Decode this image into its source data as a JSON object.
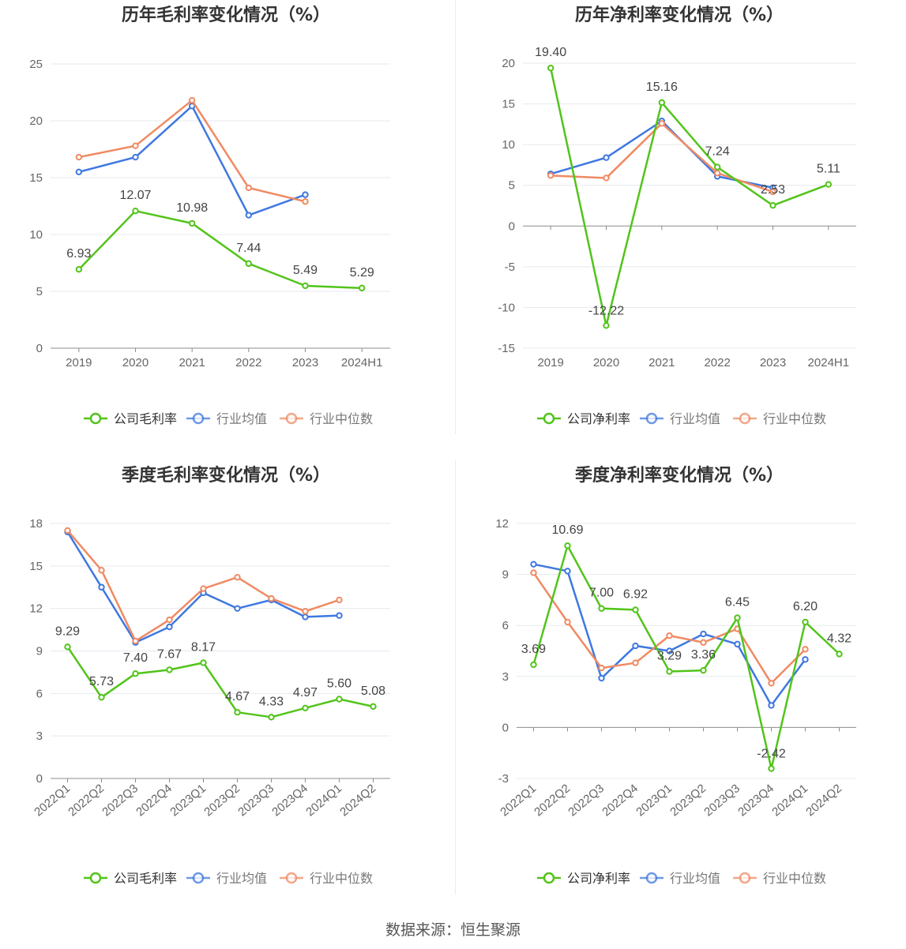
{
  "source_text": "数据来源：恒生聚源",
  "colors": {
    "company": "#52c41a",
    "avg": "#3f78e0",
    "median": "#f08a62",
    "grid": "#e6e9ef",
    "axis": "#8c8c8c",
    "label": "#666666",
    "title": "#333333"
  },
  "chart_data": [
    {
      "type": "line",
      "title": "历年毛利率变化情况（%）",
      "categories": [
        "2019",
        "2020",
        "2021",
        "2022",
        "2023",
        "2024H1"
      ],
      "ylim": [
        0,
        25
      ],
      "yticks": [
        0,
        5,
        10,
        15,
        20,
        25
      ],
      "rotate_x": false,
      "series": [
        {
          "name": "公司毛利率",
          "key": "company",
          "values": [
            6.93,
            12.07,
            10.98,
            7.44,
            5.49,
            5.29
          ],
          "labels": [
            "6.93",
            "12.07",
            "10.98",
            "7.44",
            "5.49",
            "5.29"
          ]
        },
        {
          "name": "行业均值",
          "key": "avg",
          "values": [
            15.5,
            16.8,
            21.3,
            11.7,
            13.5,
            null
          ]
        },
        {
          "name": "行业中位数",
          "key": "median",
          "values": [
            16.8,
            17.8,
            21.8,
            14.1,
            12.9,
            null
          ]
        }
      ]
    },
    {
      "type": "line",
      "title": "历年净利率变化情况（%）",
      "categories": [
        "2019",
        "2020",
        "2021",
        "2022",
        "2023",
        "2024H1"
      ],
      "ylim": [
        -15,
        20
      ],
      "yticks": [
        -15,
        -10,
        -5,
        0,
        5,
        10,
        15,
        20
      ],
      "rotate_x": false,
      "series": [
        {
          "name": "公司净利率",
          "key": "company",
          "values": [
            19.4,
            -12.22,
            15.16,
            7.24,
            2.53,
            5.11
          ],
          "labels": [
            "19.40",
            "-12.22",
            "15.16",
            "7.24",
            "2.53",
            "5.11"
          ]
        },
        {
          "name": "行业均值",
          "key": "avg",
          "values": [
            6.4,
            8.4,
            12.9,
            6.1,
            4.7,
            null
          ]
        },
        {
          "name": "行业中位数",
          "key": "median",
          "values": [
            6.2,
            5.9,
            12.6,
            6.5,
            4.2,
            null
          ]
        }
      ]
    },
    {
      "type": "line",
      "title": "季度毛利率变化情况（%）",
      "categories": [
        "2022Q1",
        "2022Q2",
        "2022Q3",
        "2022Q4",
        "2023Q1",
        "2023Q2",
        "2023Q3",
        "2023Q4",
        "2024Q1",
        "2024Q2"
      ],
      "ylim": [
        0,
        18
      ],
      "yticks": [
        0,
        3,
        6,
        9,
        12,
        15,
        18
      ],
      "rotate_x": true,
      "series": [
        {
          "name": "公司毛利率",
          "key": "company",
          "values": [
            9.29,
            5.73,
            7.4,
            7.67,
            8.17,
            4.67,
            4.33,
            4.97,
            5.6,
            5.08
          ],
          "labels": [
            "9.29",
            "5.73",
            "7.40",
            "7.67",
            "8.17",
            "4.67",
            "4.33",
            "4.97",
            "5.60",
            "5.08"
          ]
        },
        {
          "name": "行业均值",
          "key": "avg",
          "values": [
            17.4,
            13.5,
            9.6,
            10.7,
            13.1,
            12.0,
            12.6,
            11.4,
            11.5,
            null
          ]
        },
        {
          "name": "行业中位数",
          "key": "median",
          "values": [
            17.5,
            14.7,
            9.7,
            11.2,
            13.4,
            14.2,
            12.7,
            11.8,
            12.6,
            null
          ]
        }
      ]
    },
    {
      "type": "line",
      "title": "季度净利率变化情况（%）",
      "categories": [
        "2022Q1",
        "2022Q2",
        "2022Q3",
        "2022Q4",
        "2023Q1",
        "2023Q2",
        "2023Q3",
        "2023Q4",
        "2024Q1",
        "2024Q2"
      ],
      "ylim": [
        -3,
        12
      ],
      "yticks": [
        -3,
        0,
        3,
        6,
        9,
        12
      ],
      "rotate_x": true,
      "series": [
        {
          "name": "公司净利率",
          "key": "company",
          "values": [
            3.69,
            10.69,
            7.0,
            6.92,
            3.29,
            3.36,
            6.45,
            -2.42,
            6.2,
            4.32
          ],
          "labels": [
            "3.69",
            "10.69",
            "7.00",
            "6.92",
            "3.29",
            "3.36",
            "6.45",
            "-2.42",
            "6.20",
            "4.32"
          ]
        },
        {
          "name": "行业均值",
          "key": "avg",
          "values": [
            9.6,
            9.2,
            2.9,
            4.8,
            4.5,
            5.5,
            4.9,
            1.3,
            4.0,
            null
          ]
        },
        {
          "name": "行业中位数",
          "key": "median",
          "values": [
            9.1,
            6.2,
            3.5,
            3.8,
            5.4,
            5.0,
            5.8,
            2.6,
            4.6,
            null
          ]
        }
      ]
    }
  ]
}
